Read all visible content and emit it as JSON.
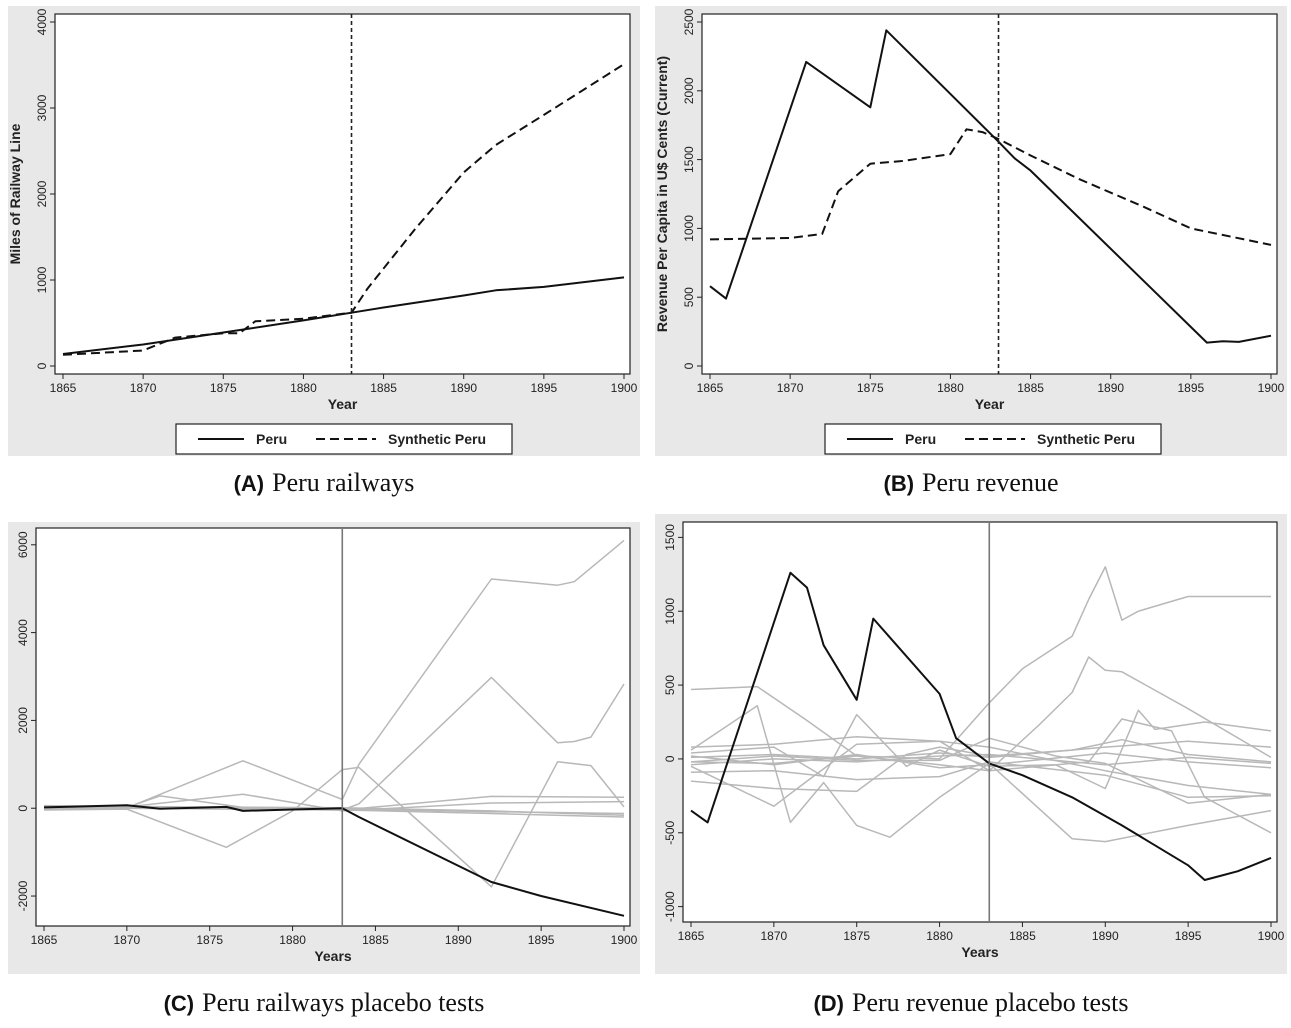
{
  "panels": [
    {
      "id": "A",
      "caption_tag": "(A)",
      "caption_text": "Peru railways",
      "chart_data": {
        "type": "line",
        "xlabel": "Year",
        "ylabel": "Miles of Railway Line",
        "xlim": [
          1865,
          1900
        ],
        "ylim": [
          0,
          4000
        ],
        "xticks": [
          1865,
          1870,
          1875,
          1880,
          1885,
          1890,
          1895,
          1900
        ],
        "yticks": [
          0,
          1000,
          2000,
          3000,
          4000
        ],
        "vline": 1883,
        "legend": "bottom",
        "series": [
          {
            "name": "Peru",
            "style": "solid",
            "x": [
              1865,
              1870,
              1875,
              1880,
              1883,
              1885,
              1890,
              1892,
              1895,
              1900
            ],
            "y": [
              140,
              250,
              390,
              530,
              620,
              680,
              820,
              880,
              920,
              1030
            ]
          },
          {
            "name": "Synthetic Peru",
            "style": "dashed",
            "x": [
              1865,
              1870,
              1872,
              1875,
              1876,
              1877,
              1880,
              1883,
              1884,
              1887,
              1890,
              1892,
              1895,
              1900
            ],
            "y": [
              130,
              180,
              330,
              380,
              380,
              520,
              550,
              620,
              900,
              1600,
              2250,
              2570,
              2920,
              3510
            ]
          }
        ]
      }
    },
    {
      "id": "B",
      "caption_tag": "(B)",
      "caption_text": "Peru revenue",
      "chart_data": {
        "type": "line",
        "xlabel": "Year",
        "ylabel": "Revenue Per Capita in U$ Cents (Current)",
        "xlim": [
          1865,
          1900
        ],
        "ylim": [
          0,
          2500
        ],
        "xticks": [
          1865,
          1870,
          1875,
          1880,
          1885,
          1890,
          1895,
          1900
        ],
        "yticks": [
          0,
          500,
          1000,
          1500,
          2000,
          2500
        ],
        "vline": 1883,
        "legend": "bottom",
        "series": [
          {
            "name": "Peru",
            "style": "solid",
            "x": [
              1865,
              1866,
              1871,
              1875,
              1876,
              1883,
              1884,
              1885,
              1896,
              1897,
              1898,
              1900
            ],
            "y": [
              580,
              490,
              2210,
              1880,
              2440,
              1630,
              1510,
              1420,
              170,
              180,
              175,
              220
            ]
          },
          {
            "name": "Synthetic Peru",
            "style": "dashed",
            "x": [
              1865,
              1870,
              1872,
              1873,
              1875,
              1877,
              1880,
              1881,
              1882,
              1883,
              1885,
              1888,
              1892,
              1895,
              1900
            ],
            "y": [
              920,
              930,
              960,
              1270,
              1470,
              1490,
              1540,
              1720,
              1700,
              1650,
              1530,
              1360,
              1160,
              1000,
              880
            ]
          }
        ]
      }
    },
    {
      "id": "C",
      "caption_tag": "(C)",
      "caption_text": "Peru railways placebo tests",
      "chart_data": {
        "type": "line",
        "xlabel": "Years",
        "ylabel": "",
        "xlim": [
          1865,
          1900
        ],
        "ylim": [
          -2500,
          6200
        ],
        "xticks": [
          1865,
          1870,
          1875,
          1880,
          1885,
          1890,
          1895,
          1900
        ],
        "yticks": [
          -2000,
          0,
          2000,
          4000,
          6000
        ],
        "vline": 1883,
        "legend": "none",
        "series": [
          {
            "role": "treated",
            "x": [
              1865,
              1870,
              1872,
              1876,
              1877,
              1880,
              1883,
              1884,
              1892,
              1895,
              1900
            ],
            "y": [
              20,
              70,
              -10,
              30,
              -60,
              -30,
              0,
              -200,
              -1680,
              -2000,
              -2450
            ]
          },
          {
            "role": "placebo",
            "x": [
              1865,
              1870,
              1877,
              1883,
              1884,
              1892,
              1896,
              1897,
              1900
            ],
            "y": [
              -20,
              10,
              1080,
              200,
              1000,
              5220,
              5080,
              5160,
              6100
            ]
          },
          {
            "role": "placebo",
            "x": [
              1865,
              1870,
              1883,
              1884,
              1892,
              1896,
              1897,
              1898,
              1900
            ],
            "y": [
              30,
              0,
              -40,
              100,
              2980,
              1490,
              1520,
              1620,
              2830
            ]
          },
          {
            "role": "placebo",
            "x": [
              1865,
              1870,
              1876,
              1880,
              1883,
              1884,
              1892,
              1896,
              1898,
              1900
            ],
            "y": [
              -40,
              -20,
              -890,
              -60,
              880,
              930,
              -1790,
              1060,
              970,
              30
            ]
          },
          {
            "role": "placebo",
            "x": [
              1865,
              1870,
              1872,
              1877,
              1883,
              1892,
              1900
            ],
            "y": [
              10,
              20,
              280,
              20,
              -40,
              270,
              250
            ]
          },
          {
            "role": "placebo",
            "x": [
              1865,
              1870,
              1877,
              1883,
              1892,
              1900
            ],
            "y": [
              40,
              30,
              320,
              -60,
              120,
              150
            ]
          },
          {
            "role": "placebo",
            "x": [
              1865,
              1870,
              1883,
              1892,
              1900
            ],
            "y": [
              0,
              20,
              -20,
              -80,
              -120
            ]
          },
          {
            "role": "placebo",
            "x": [
              1865,
              1870,
              1883,
              1892,
              1900
            ],
            "y": [
              -30,
              0,
              -40,
              -120,
              -200
            ]
          },
          {
            "role": "placebo",
            "x": [
              1865,
              1870,
              1883,
              1892,
              1900
            ],
            "y": [
              60,
              40,
              10,
              -60,
              -160
            ]
          }
        ]
      }
    },
    {
      "id": "D",
      "caption_tag": "(D)",
      "caption_text": "Peru revenue placebo tests",
      "chart_data": {
        "type": "line",
        "xlabel": "Years",
        "ylabel": "",
        "xlim": [
          1865,
          1900
        ],
        "ylim": [
          -1050,
          1550
        ],
        "xticks": [
          1865,
          1870,
          1875,
          1880,
          1885,
          1890,
          1895,
          1900
        ],
        "yticks": [
          -1000,
          -500,
          0,
          500,
          1000,
          1500
        ],
        "vline": 1883,
        "legend": "none",
        "series": [
          {
            "role": "treated",
            "x": [
              1865,
              1866,
              1871,
              1872,
              1873,
              1875,
              1876,
              1880,
              1881,
              1883,
              1885,
              1888,
              1891,
              1895,
              1896,
              1897,
              1898,
              1900
            ],
            "y": [
              -350,
              -430,
              1260,
              1160,
              770,
              400,
              950,
              440,
              140,
              -30,
              -110,
              -260,
              -450,
              -720,
              -820,
              -790,
              -760,
              -670
            ]
          },
          {
            "role": "placebo",
            "x": [
              1865,
              1869,
              1872,
              1875,
              1880,
              1883,
              1885,
              1888,
              1889,
              1890,
              1891,
              1892,
              1895,
              1898,
              1900
            ],
            "y": [
              470,
              490,
              260,
              20,
              0,
              380,
              610,
              830,
              1080,
              1300,
              940,
              1000,
              1100,
              1100,
              1100
            ]
          },
          {
            "role": "placebo",
            "x": [
              1865,
              1870,
              1875,
              1880,
              1883,
              1886,
              1888,
              1889,
              1890,
              1891,
              1895,
              1900
            ],
            "y": [
              -20,
              -30,
              20,
              -40,
              -80,
              230,
              450,
              690,
              600,
              590,
              340,
              10
            ]
          },
          {
            "role": "placebo",
            "x": [
              1865,
              1869,
              1871,
              1873,
              1875,
              1877,
              1880,
              1883,
              1888,
              1890,
              1895,
              1900
            ],
            "y": [
              60,
              360,
              -430,
              -160,
              -450,
              -530,
              -260,
              -30,
              -540,
              -560,
              -450,
              -350
            ]
          },
          {
            "role": "placebo",
            "x": [
              1865,
              1870,
              1873,
              1875,
              1878,
              1880,
              1883,
              1887,
              1890,
              1892,
              1893,
              1896,
              1900
            ],
            "y": [
              40,
              80,
              -120,
              300,
              -50,
              60,
              -50,
              -40,
              -200,
              330,
              200,
              250,
              190
            ]
          },
          {
            "role": "placebo",
            "x": [
              1865,
              1870,
              1875,
              1878,
              1880,
              1883,
              1888,
              1891,
              1895,
              1900
            ],
            "y": [
              -150,
              -200,
              -220,
              30,
              80,
              20,
              60,
              130,
              30,
              -20
            ]
          },
          {
            "role": "placebo",
            "x": [
              1865,
              1870,
              1872,
              1875,
              1880,
              1883,
              1889,
              1891,
              1894,
              1896,
              1900
            ],
            "y": [
              -50,
              -320,
              -150,
              100,
              120,
              -80,
              -20,
              270,
              190,
              -260,
              -500
            ]
          },
          {
            "role": "placebo",
            "x": [
              1865,
              1870,
              1875,
              1880,
              1883,
              1890,
              1895,
              1900
            ],
            "y": [
              80,
              100,
              150,
              120,
              80,
              -80,
              -180,
              -240
            ]
          },
          {
            "role": "placebo",
            "x": [
              1865,
              1870,
              1875,
              1880,
              1883,
              1890,
              1895,
              1900
            ],
            "y": [
              20,
              -40,
              30,
              -60,
              -40,
              40,
              -20,
              -60
            ]
          },
          {
            "role": "placebo",
            "x": [
              1865,
              1870,
              1875,
              1880,
              1883,
              1890,
              1895,
              1900
            ],
            "y": [
              -40,
              0,
              -20,
              20,
              30,
              -40,
              10,
              -30
            ]
          },
          {
            "role": "placebo",
            "x": [
              1865,
              1870,
              1875,
              1880,
              1883,
              1890,
              1895,
              1900
            ],
            "y": [
              -90,
              -80,
              -140,
              -120,
              -20,
              -110,
              -260,
              -250
            ]
          },
          {
            "role": "placebo",
            "x": [
              1865,
              1870,
              1875,
              1880,
              1883,
              1890,
              1895,
              1900
            ],
            "y": [
              10,
              30,
              0,
              40,
              10,
              80,
              120,
              80
            ]
          },
          {
            "role": "placebo",
            "x": [
              1865,
              1870,
              1875,
              1880,
              1883,
              1887,
              1890,
              1895,
              1900
            ],
            "y": [
              -20,
              20,
              -10,
              -10,
              140,
              20,
              -30,
              -300,
              -240
            ]
          }
        ]
      }
    }
  ]
}
